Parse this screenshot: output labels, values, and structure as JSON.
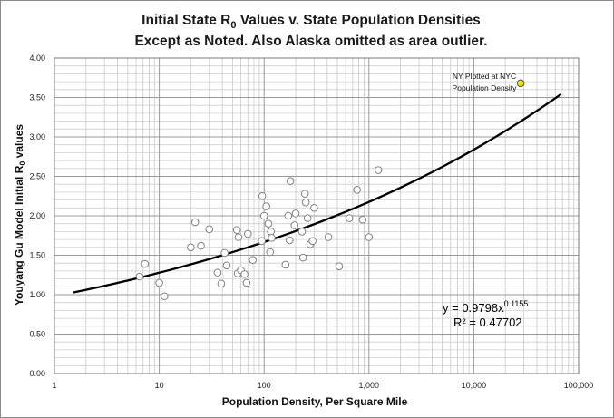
{
  "chart_data": {
    "type": "scatter",
    "title_line1_parts": [
      "Initial State R",
      "0",
      " Values v. State Population Densities"
    ],
    "title_line2": "Except as Noted.  Also Alaska omitted as area outlier.",
    "xlabel": "Population Density, Per Square Mile",
    "ylabel_parts": [
      "Youyang Gu Model Initial R",
      "0",
      " values"
    ],
    "x_scale": "log",
    "xlim": [
      1,
      100000
    ],
    "ylim": [
      0,
      4
    ],
    "x_ticks": [
      1,
      10,
      100,
      1000,
      10000,
      100000
    ],
    "x_tick_labels": [
      "1",
      "10",
      "100",
      "1,000",
      "10,000",
      "100,000"
    ],
    "y_ticks": [
      0,
      0.5,
      1,
      1.5,
      2,
      2.5,
      3,
      3.5,
      4
    ],
    "y_tick_labels": [
      "0.00",
      "0.50",
      "1.00",
      "1.50",
      "2.00",
      "2.50",
      "3.00",
      "3.50",
      "4.00"
    ],
    "grid": true,
    "series": [
      {
        "name": "States",
        "color": "#ffffff",
        "edge_color": "#808080",
        "points": [
          [
            6.5,
            1.23
          ],
          [
            7.3,
            1.39
          ],
          [
            10,
            1.15
          ],
          [
            11.2,
            0.98
          ],
          [
            20,
            1.6
          ],
          [
            22,
            1.92
          ],
          [
            25,
            1.62
          ],
          [
            30,
            1.83
          ],
          [
            36,
            1.28
          ],
          [
            39,
            1.14
          ],
          [
            42,
            1.53
          ],
          [
            44,
            1.37
          ],
          [
            55,
            1.82
          ],
          [
            56,
            1.27
          ],
          [
            57,
            1.73
          ],
          [
            60,
            1.31
          ],
          [
            65,
            1.26
          ],
          [
            68,
            1.15
          ],
          [
            70,
            1.77
          ],
          [
            78,
            1.44
          ],
          [
            95,
            1.68
          ],
          [
            96,
            2.25
          ],
          [
            100,
            2.0
          ],
          [
            105,
            2.12
          ],
          [
            110,
            1.9
          ],
          [
            114,
            1.54
          ],
          [
            116,
            1.8
          ],
          [
            118,
            1.72
          ],
          [
            160,
            1.38
          ],
          [
            170,
            2.0
          ],
          [
            175,
            1.69
          ],
          [
            178,
            2.44
          ],
          [
            195,
            1.88
          ],
          [
            200,
            2.03
          ],
          [
            230,
            1.8
          ],
          [
            235,
            1.47
          ],
          [
            245,
            2.28
          ],
          [
            250,
            2.17
          ],
          [
            260,
            1.97
          ],
          [
            275,
            1.64
          ],
          [
            290,
            1.68
          ],
          [
            300,
            2.1
          ],
          [
            410,
            1.73
          ],
          [
            520,
            1.36
          ],
          [
            650,
            1.97
          ],
          [
            770,
            2.33
          ],
          [
            870,
            1.95
          ],
          [
            1000,
            1.73
          ],
          [
            1230,
            2.58
          ]
        ]
      },
      {
        "name": "NY Plotted at NYC Population Density",
        "color": "#e8e800",
        "edge_color": "#555555",
        "points": [
          [
            28000,
            3.68
          ]
        ]
      }
    ],
    "annotations": [
      {
        "text_lines": [
          "NY Plotted at NYC",
          "Population Density"
        ],
        "x": 9500,
        "y": 3.68
      }
    ],
    "trendline": {
      "type": "power",
      "a": 0.9798,
      "b": 0.1155,
      "x_range": [
        1.5,
        68000
      ],
      "equation_base": "y = 0.9798x",
      "equation_exponent": "0.1155",
      "r_squared_label": "R² = 0.47702"
    }
  }
}
